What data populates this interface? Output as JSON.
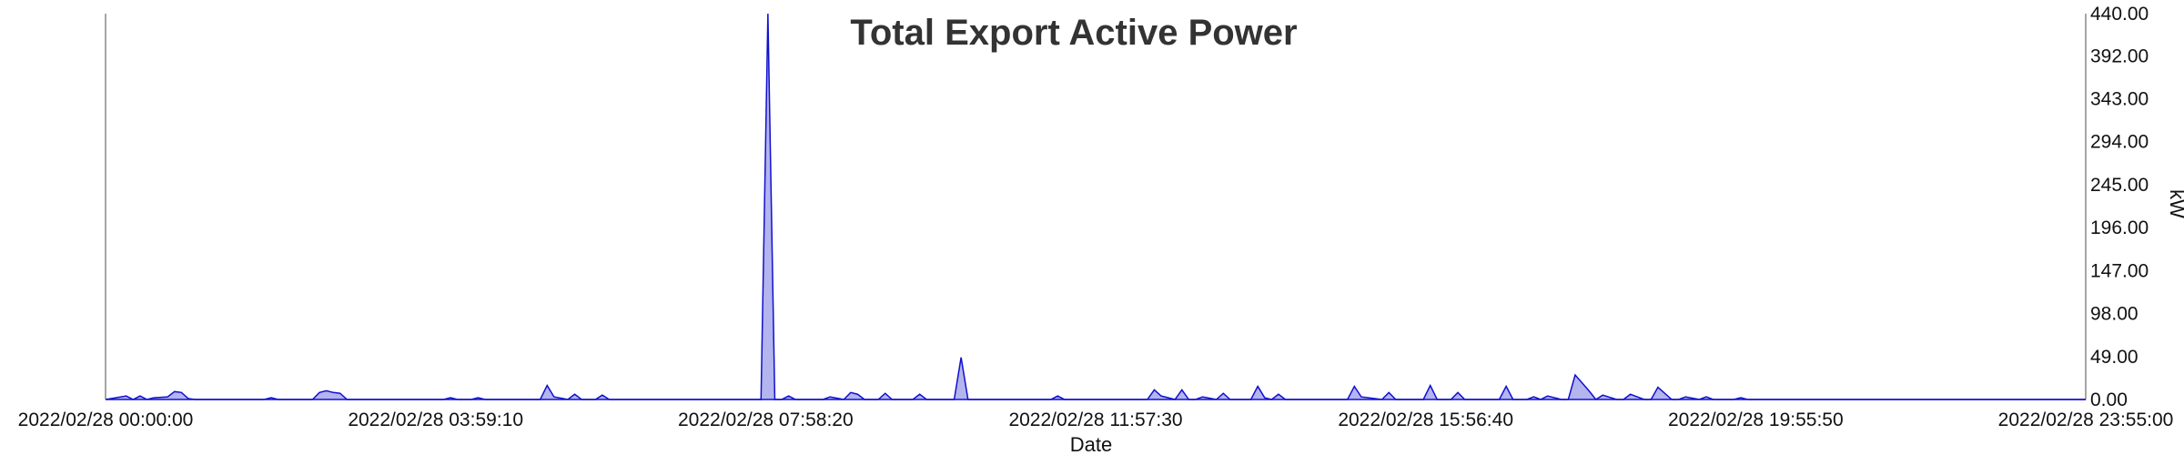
{
  "chart_data": {
    "type": "area",
    "title": "Total Export Active  Power",
    "xlabel": "Date",
    "ylabel": "kW",
    "ylim": [
      0,
      440
    ],
    "y_axis_side": "right",
    "grid": false,
    "legend": "none",
    "x_range": [
      "2022/02/28 00:00:00",
      "2022/02/28 23:55:00"
    ],
    "x_ticks": [
      "2022/02/28 00:00:00",
      "2022/02/28 03:59:10",
      "2022/02/28 07:58:20",
      "2022/02/28 11:57:30",
      "2022/02/28 15:56:40",
      "2022/02/28 19:55:50",
      "2022/02/28 23:55:00"
    ],
    "y_ticks": [
      "0.00",
      "49.00",
      "98.00",
      "147.00",
      "196.00",
      "245.00",
      "294.00",
      "343.00",
      "392.00",
      "440.00"
    ],
    "colors": {
      "line": "#1010d0",
      "fill": "#b4b4ee",
      "axis": "#888888"
    },
    "series": [
      {
        "x": [
          "2022/02/28 00:00:00",
          "2022/02/28 00:15:00",
          "2022/02/28 00:20:00",
          "2022/02/28 00:25:00",
          "2022/02/28 00:30:00",
          "2022/02/28 00:35:00",
          "2022/02/28 00:45:00",
          "2022/02/28 00:50:00",
          "2022/02/28 00:55:00",
          "2022/02/28 01:00:00",
          "2022/02/28 01:05:00",
          "2022/02/28 01:15:00",
          "2022/02/28 01:55:00",
          "2022/02/28 02:00:00",
          "2022/02/28 02:05:00",
          "2022/02/28 02:30:00",
          "2022/02/28 02:35:00",
          "2022/02/28 02:40:00",
          "2022/02/28 02:45:00",
          "2022/02/28 02:50:00",
          "2022/02/28 02:55:00",
          "2022/02/28 04:05:00",
          "2022/02/28 04:10:00",
          "2022/02/28 04:15:00",
          "2022/02/28 04:25:00",
          "2022/02/28 04:30:00",
          "2022/02/28 04:35:00",
          "2022/02/28 05:15:00",
          "2022/02/28 05:20:00",
          "2022/02/28 05:25:00",
          "2022/02/28 05:35:00",
          "2022/02/28 05:40:00",
          "2022/02/28 05:45:00",
          "2022/02/28 05:55:00",
          "2022/02/28 06:00:00",
          "2022/02/28 06:05:00",
          "2022/02/28 07:55:00",
          "2022/02/28 08:00:00",
          "2022/02/28 08:05:00",
          "2022/02/28 08:10:00",
          "2022/02/28 08:15:00",
          "2022/02/28 08:20:00",
          "2022/02/28 08:40:00",
          "2022/02/28 08:45:00",
          "2022/02/28 08:55:00",
          "2022/02/28 09:00:00",
          "2022/02/28 09:05:00",
          "2022/02/28 09:10:00",
          "2022/02/28 09:20:00",
          "2022/02/28 09:25:00",
          "2022/02/28 09:30:00",
          "2022/02/28 09:45:00",
          "2022/02/28 09:50:00",
          "2022/02/28 09:55:00",
          "2022/02/28 10:15:00",
          "2022/02/28 10:20:00",
          "2022/02/28 10:25:00",
          "2022/02/28 11:25:00",
          "2022/02/28 11:30:00",
          "2022/02/28 11:35:00",
          "2022/02/28 12:35:00",
          "2022/02/28 12:40:00",
          "2022/02/28 12:45:00",
          "2022/02/28 12:55:00",
          "2022/02/28 13:00:00",
          "2022/02/28 13:05:00",
          "2022/02/28 13:10:00",
          "2022/02/28 13:15:00",
          "2022/02/28 13:25:00",
          "2022/02/28 13:30:00",
          "2022/02/28 13:35:00",
          "2022/02/28 13:50:00",
          "2022/02/28 13:55:00",
          "2022/02/28 14:00:00",
          "2022/02/28 14:05:00",
          "2022/02/28 14:10:00",
          "2022/02/28 14:15:00",
          "2022/02/28 15:00:00",
          "2022/02/28 15:05:00",
          "2022/02/28 15:10:00",
          "2022/02/28 15:25:00",
          "2022/02/28 15:30:00",
          "2022/02/28 15:35:00",
          "2022/02/28 15:55:00",
          "2022/02/28 16:00:00",
          "2022/02/28 16:05:00",
          "2022/02/28 16:15:00",
          "2022/02/28 16:20:00",
          "2022/02/28 16:25:00",
          "2022/02/28 16:50:00",
          "2022/02/28 16:55:00",
          "2022/02/28 17:00:00",
          "2022/02/28 17:10:00",
          "2022/02/28 17:15:00",
          "2022/02/28 17:20:00",
          "2022/02/28 17:25:00",
          "2022/02/28 17:35:00",
          "2022/02/28 17:40:00",
          "2022/02/28 17:45:00",
          "2022/02/28 17:55:00",
          "2022/02/28 18:00:00",
          "2022/02/28 18:05:00",
          "2022/02/28 18:15:00",
          "2022/02/28 18:20:00",
          "2022/02/28 18:25:00",
          "2022/02/28 18:35:00",
          "2022/02/28 18:40:00",
          "2022/02/28 18:45:00",
          "2022/02/28 18:55:00",
          "2022/02/28 19:00:00",
          "2022/02/28 19:05:00",
          "2022/02/28 19:15:00",
          "2022/02/28 19:20:00",
          "2022/02/28 19:25:00",
          "2022/02/28 19:40:00",
          "2022/02/28 19:45:00",
          "2022/02/28 19:50:00",
          "2022/02/28 23:55:00"
        ],
        "y": [
          0,
          4,
          0,
          4,
          0,
          2,
          3,
          9,
          8,
          1,
          0,
          0,
          0,
          2,
          0,
          0,
          8,
          10,
          8,
          7,
          0,
          0,
          2,
          0,
          0,
          2,
          0,
          0,
          16,
          3,
          0,
          6,
          0,
          0,
          5,
          0,
          0,
          440,
          0,
          0,
          4,
          0,
          0,
          3,
          0,
          8,
          6,
          0,
          0,
          7,
          0,
          0,
          6,
          0,
          0,
          48,
          0,
          0,
          4,
          0,
          0,
          11,
          4,
          0,
          11,
          0,
          0,
          3,
          0,
          7,
          0,
          0,
          15,
          2,
          0,
          6,
          0,
          0,
          15,
          3,
          0,
          8,
          0,
          0,
          16,
          0,
          0,
          8,
          0,
          0,
          15,
          0,
          0,
          3,
          0,
          4,
          0,
          0,
          28,
          10,
          0,
          5,
          0,
          0,
          6,
          0,
          0,
          14,
          0,
          0,
          3,
          0,
          3,
          0,
          0,
          2,
          0,
          0
        ]
      }
    ]
  }
}
